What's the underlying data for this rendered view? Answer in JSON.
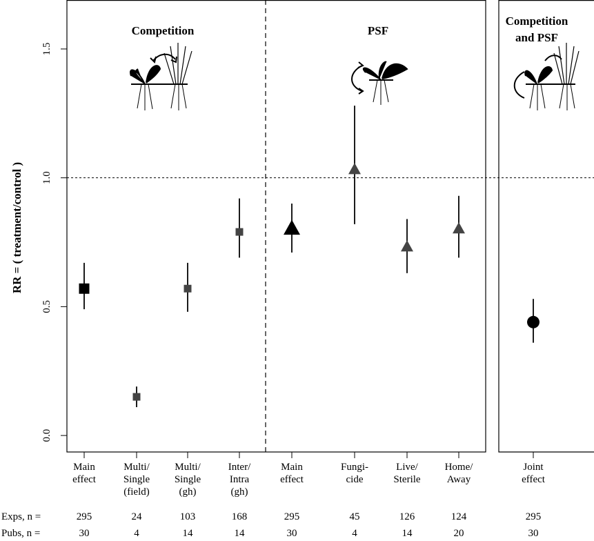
{
  "chart_data": {
    "type": "errorbar",
    "ylabel": "RR = ( treatment/control )",
    "ylim": [
      -0.064,
      1.69
    ],
    "yticks": [
      {
        "value": 0,
        "label": "0.0"
      },
      {
        "value": 0.5,
        "label": "0.5"
      },
      {
        "value": 1,
        "label": "1.0"
      },
      {
        "value": 1.5,
        "label": "1.5"
      }
    ],
    "hline": 1,
    "row_labels": [
      "Exps, n =",
      "Pubs, n ="
    ],
    "groups": [
      {
        "title": "Competition",
        "categories": [
          "Main\neffect",
          "Multi/\nSingle\n(field)",
          "Multi/\nSingle\n(gh)",
          "Inter/\nIntra\n(gh)"
        ],
        "values": [
          0.57,
          0.15,
          0.57,
          0.79
        ],
        "lower": [
          0.49,
          0.11,
          0.48,
          0.69
        ],
        "upper": [
          0.67,
          0.19,
          0.67,
          0.92
        ],
        "marker": "square",
        "colors": [
          "#000000",
          "#444444",
          "#444444",
          "#444444"
        ],
        "exps": [
          295,
          24,
          103,
          168
        ],
        "pubs": [
          30,
          4,
          14,
          14
        ]
      },
      {
        "title": "PSF",
        "categories": [
          "Main\neffect",
          "Fungi-\ncide",
          "Live/\nSterile",
          "Home/\nAway"
        ],
        "values": [
          0.8,
          1.03,
          0.73,
          0.8
        ],
        "lower": [
          0.71,
          0.82,
          0.63,
          0.69
        ],
        "upper": [
          0.9,
          1.28,
          0.84,
          0.93
        ],
        "marker": "triangle",
        "colors": [
          "#000000",
          "#444444",
          "#444444",
          "#444444"
        ],
        "exps": [
          295,
          45,
          126,
          124
        ],
        "pubs": [
          30,
          4,
          14,
          20
        ]
      },
      {
        "title": "Competition\nand PSF",
        "categories": [
          "Joint\neffect"
        ],
        "values": [
          0.44
        ],
        "lower": [
          0.36
        ],
        "upper": [
          0.53
        ],
        "marker": "circle",
        "colors": [
          "#000000"
        ],
        "exps": [
          295
        ],
        "pubs": [
          30
        ]
      }
    ]
  }
}
